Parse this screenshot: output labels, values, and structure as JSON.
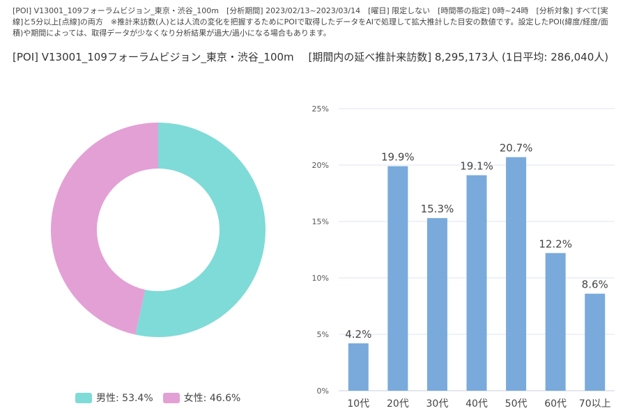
{
  "header": {
    "note": "[POI] V13001_109フォーラムビジョン_東京・渋谷_100m　[分析期間] 2023/02/13~2023/03/14　[曜日] 限定しない　[時間帯の指定] 0時~24時　[分析対象] すべて[実線]と5分以上[点線]の両方　※推計来訪数(人)とは人流の変化を把握するためにPOIで取得したデータをAIで処理して拡大推計した目安の数値です。設定したPOI(緯度/経度/面積)や期間によっては、取得データが少なくなり分析結果が過大/過小になる場合もあります。",
    "poi_name": "[POI] V13001_109フォーラムビジョン_東京・渋谷_100m",
    "visitors_summary": "[期間内の延べ推計来訪数] 8,295,173人 (1日平均: 286,040人)"
  },
  "colors": {
    "male": "#7fdbd7",
    "female": "#e3a0d5",
    "bar": "#79aadb",
    "grid": "#dde6f0",
    "axis_text": "#555555"
  },
  "chart_data": [
    {
      "type": "pie",
      "variant": "donut",
      "categories": [
        "男性",
        "女性"
      ],
      "values": [
        53.4,
        46.6
      ],
      "legend_labels": [
        "男性: 53.4%",
        "女性: 46.6%"
      ],
      "legend": "bottom"
    },
    {
      "type": "bar",
      "categories": [
        "10代",
        "20代",
        "30代",
        "40代",
        "50代",
        "60代",
        "70以上"
      ],
      "values": [
        4.2,
        19.9,
        15.3,
        19.1,
        20.7,
        12.2,
        8.6
      ],
      "data_labels": [
        "4.2%",
        "19.9%",
        "15.3%",
        "19.1%",
        "20.7%",
        "12.2%",
        "8.6%"
      ],
      "ylim": [
        0,
        25
      ],
      "yticks": [
        0,
        5,
        10,
        15,
        20,
        25
      ],
      "ytick_labels": [
        "0%",
        "5%",
        "10%",
        "15%",
        "20%",
        "25%"
      ],
      "grid": true
    }
  ]
}
